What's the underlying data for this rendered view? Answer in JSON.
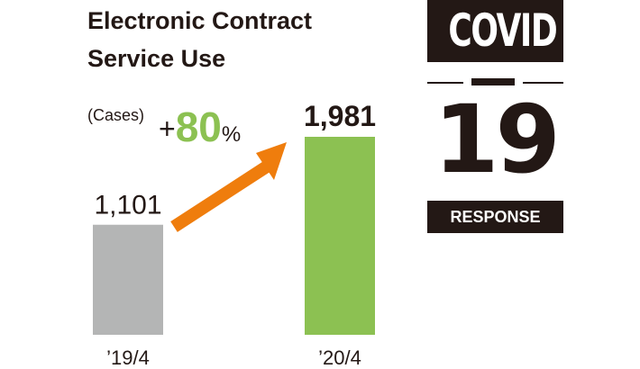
{
  "chart_data": {
    "type": "bar",
    "title_lines": [
      "Electronic Contract",
      "Service Use"
    ],
    "unit_label": "(Cases)",
    "categories": [
      "’19/4",
      "’20/4"
    ],
    "values": [
      1101,
      1981
    ],
    "value_labels": [
      "1,101",
      "1,981"
    ],
    "bar_colors": [
      "#b4b5b5",
      "#8cc152"
    ],
    "ylim": [
      0,
      2000
    ],
    "grid": false,
    "annotation": {
      "sign": "+",
      "value": "80",
      "unit": "%",
      "value_color": "#8cc152",
      "arrow_color": "#ef7d0d"
    }
  },
  "badge": {
    "top_text": "COVID",
    "number": "19",
    "bottom_text": "RESPONSE",
    "color": "#231815"
  }
}
